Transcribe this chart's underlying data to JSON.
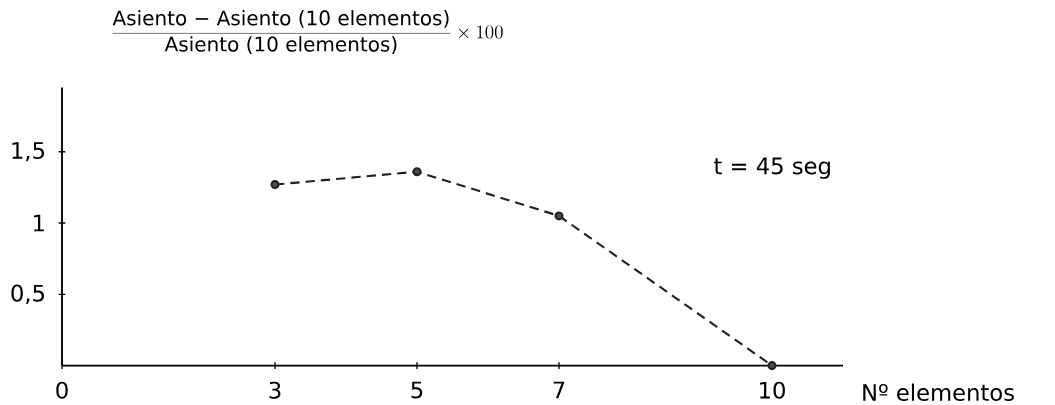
{
  "chart_data": {
    "type": "line",
    "ylabel": "\\frac{\\mbox{Asiento − Asiento (10 elementos)}}{\\mbox{Asiento (10 elementos)}}\\times 100",
    "xlabel": "Nº elementos",
    "x": [
      3,
      5,
      7,
      10
    ],
    "values": [
      1.27,
      1.36,
      1.05,
      0
    ],
    "color": "#222222",
    "marker": "circle",
    "line_style": "dashed",
    "xlim": [
      0,
      11
    ],
    "ylim": [
      0,
      1.95
    ],
    "xticks": [
      0,
      3,
      5,
      7,
      10
    ],
    "yticks": [
      {
        "value": 0.5,
        "label": "0,5"
      },
      1,
      {
        "value": 1.5,
        "label": "1,5"
      }
    ],
    "annotations": [
      "t = 45 seg"
    ]
  }
}
